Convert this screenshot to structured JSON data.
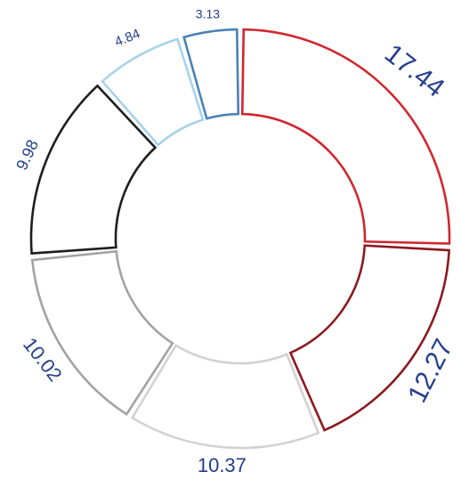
{
  "chart_data": {
    "type": "pie",
    "style": "donut",
    "labels": [
      "17.44",
      "12.27",
      "10.37",
      "10.02",
      "9.98",
      "4.84",
      "3.13"
    ],
    "values": [
      17.44,
      12.27,
      10.37,
      10.02,
      9.98,
      4.84,
      3.13
    ],
    "colors": [
      "#d0272f",
      "#8b1a1f",
      "#d2d2d2",
      "#a3a3a3",
      "#1e1e1e",
      "#a6d2ec",
      "#4a82b6"
    ],
    "label_color": "#233e8b",
    "title": "",
    "legend": "none",
    "grid": false
  }
}
